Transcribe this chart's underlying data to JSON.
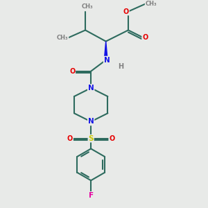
{
  "bg_color": "#e8eae8",
  "bond_color": "#2d6b5e",
  "N_color": "#1414e6",
  "O_color": "#e60000",
  "S_color": "#c8c800",
  "F_color": "#e600a0",
  "H_color": "#808080",
  "lw": 1.5,
  "figsize": [
    3.0,
    3.0
  ],
  "dpi": 100,
  "xlim": [
    0,
    8
  ],
  "ylim": [
    0,
    11
  ]
}
